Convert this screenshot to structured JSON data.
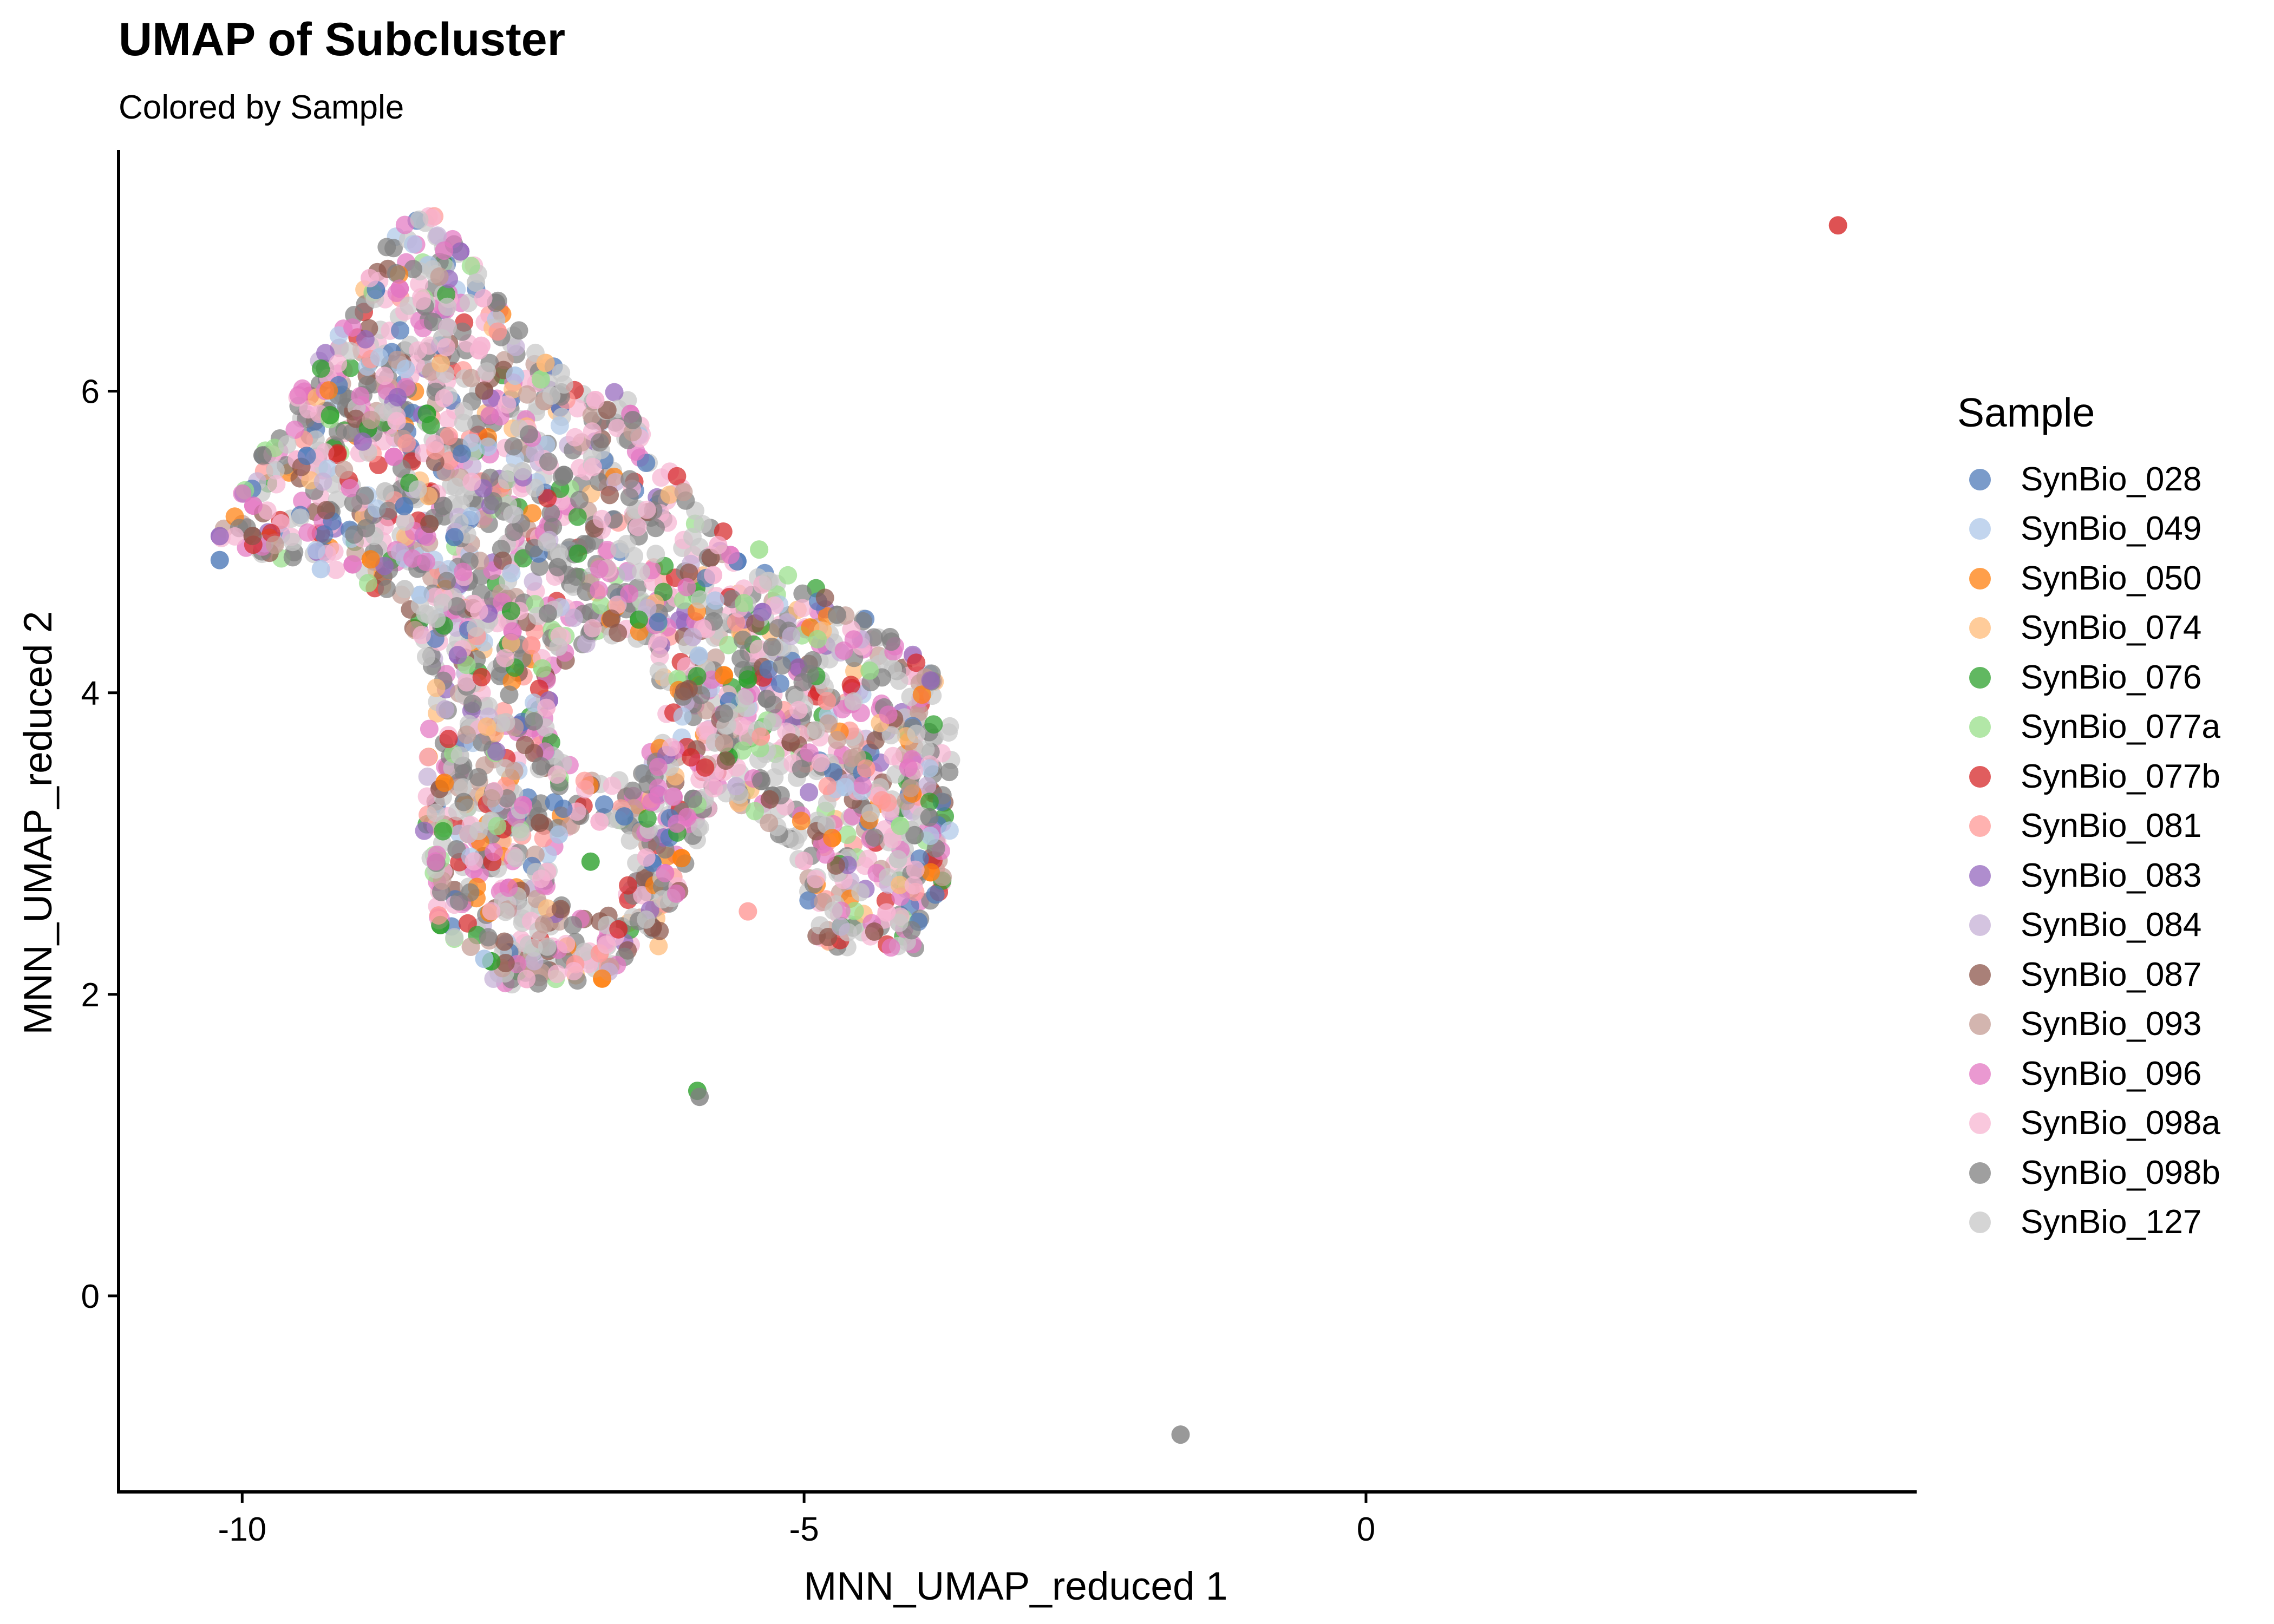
{
  "title": "UMAP of Subcluster",
  "subtitle": "Colored by Sample",
  "legend": {
    "title": "Sample",
    "placement": "right",
    "items": [
      {
        "label": "SynBio_028",
        "color": "#4E79B8"
      },
      {
        "label": "SynBio_049",
        "color": "#AEC7E8"
      },
      {
        "label": "SynBio_050",
        "color": "#FF7F0E"
      },
      {
        "label": "SynBio_074",
        "color": "#FFBB78"
      },
      {
        "label": "SynBio_076",
        "color": "#2CA02C"
      },
      {
        "label": "SynBio_077a",
        "color": "#98DF8A"
      },
      {
        "label": "SynBio_077b",
        "color": "#D62728"
      },
      {
        "label": "SynBio_081",
        "color": "#FF9896"
      },
      {
        "label": "SynBio_083",
        "color": "#9467BD"
      },
      {
        "label": "SynBio_084",
        "color": "#C5B0D5"
      },
      {
        "label": "SynBio_087",
        "color": "#8C564B"
      },
      {
        "label": "SynBio_093",
        "color": "#C49C94"
      },
      {
        "label": "SynBio_096",
        "color": "#E377C2"
      },
      {
        "label": "SynBio_098a",
        "color": "#F7B6D2"
      },
      {
        "label": "SynBio_098b",
        "color": "#7F7F7F"
      },
      {
        "label": "SynBio_127",
        "color": "#C7C7C7"
      }
    ]
  },
  "chart_data": {
    "type": "scatter",
    "title": "UMAP of Subcluster",
    "subtitle": "Colored by Sample",
    "xlabel": "MNN_UMAP_reduced 1",
    "ylabel": "MNN_UMAP_reduced 2",
    "xlim": [
      -11.1,
      4.9
    ],
    "ylim": [
      -1.3,
      7.6
    ],
    "x_ticks": [
      -10,
      -5,
      0
    ],
    "y_ticks": [
      0,
      2,
      4,
      6
    ],
    "grid": false,
    "series_names": [
      "SynBio_028",
      "SynBio_049",
      "SynBio_050",
      "SynBio_074",
      "SynBio_076",
      "SynBio_077a",
      "SynBio_077b",
      "SynBio_081",
      "SynBio_083",
      "SynBio_084",
      "SynBio_087",
      "SynBio_093",
      "SynBio_096",
      "SynBio_098a",
      "SynBio_098b",
      "SynBio_127"
    ],
    "main_cluster_outline": [
      [
        -10.3,
        5.0
      ],
      [
        -9.4,
        6.1
      ],
      [
        -8.6,
        7.1
      ],
      [
        -8.3,
        7.25
      ],
      [
        -7.7,
        6.6
      ],
      [
        -7.0,
        6.0
      ],
      [
        -6.6,
        6.0
      ],
      [
        -6.1,
        5.4
      ],
      [
        -5.5,
        4.9
      ],
      [
        -4.9,
        4.7
      ],
      [
        -4.4,
        4.5
      ],
      [
        -3.9,
        4.2
      ],
      [
        -3.6,
        3.6
      ],
      [
        -3.8,
        2.6
      ],
      [
        -4.0,
        2.3
      ],
      [
        -4.9,
        2.3
      ],
      [
        -5.0,
        2.8
      ],
      [
        -5.4,
        3.2
      ],
      [
        -5.8,
        3.3
      ],
      [
        -6.3,
        2.3
      ],
      [
        -6.8,
        2.1
      ],
      [
        -7.7,
        2.05
      ],
      [
        -8.3,
        2.5
      ],
      [
        -8.4,
        3.2
      ],
      [
        -8.3,
        4.1
      ],
      [
        -8.6,
        4.6
      ],
      [
        -9.1,
        4.8
      ],
      [
        -9.8,
        4.9
      ]
    ],
    "cluster_holes": [
      {
        "x": -6.75,
        "y": 3.9,
        "rx": 0.5,
        "ry": 0.45
      },
      {
        "x": -6.9,
        "y": 2.85,
        "rx": 0.35,
        "ry": 0.3
      }
    ],
    "highlighted_points": [
      {
        "series": "SynBio_077b",
        "x": 4.2,
        "y": 7.1
      },
      {
        "series": "SynBio_098b",
        "x": -1.65,
        "y": -0.92
      },
      {
        "series": "SynBio_076",
        "x": -5.95,
        "y": 1.36
      },
      {
        "series": "SynBio_098b",
        "x": -5.93,
        "y": 1.32
      },
      {
        "series": "SynBio_028",
        "x": -6.6,
        "y": 3.18
      },
      {
        "series": "SynBio_076",
        "x": -6.9,
        "y": 2.88
      },
      {
        "series": "SynBio_081",
        "x": -5.5,
        "y": 2.55
      },
      {
        "series": "SynBio_028",
        "x": -10.2,
        "y": 4.88
      },
      {
        "series": "SynBio_049",
        "x": -9.3,
        "y": 4.82
      },
      {
        "series": "SynBio_077a",
        "x": -5.4,
        "y": 4.95
      }
    ]
  }
}
